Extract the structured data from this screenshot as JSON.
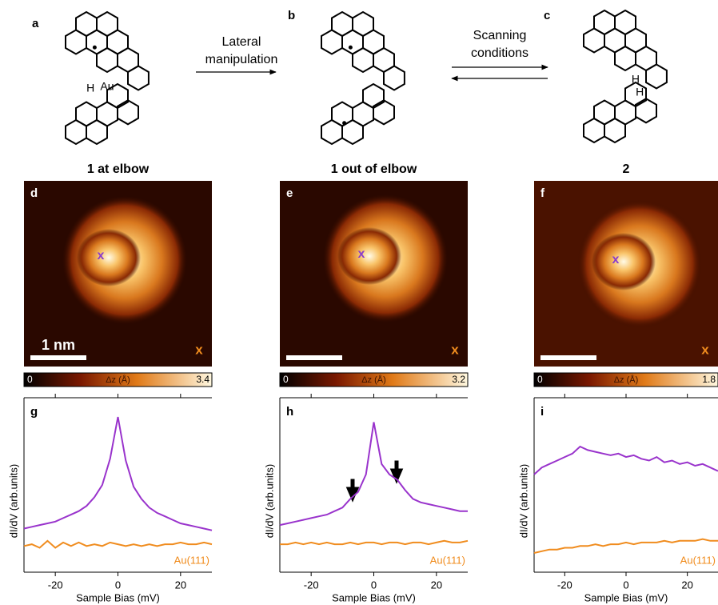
{
  "scheme": {
    "panels": [
      {
        "label": "a",
        "atoms": [
          "H",
          "Au"
        ]
      },
      {
        "label": "b"
      },
      {
        "label": "c",
        "atoms": [
          "H",
          "H"
        ]
      }
    ],
    "arrows": [
      {
        "text": [
          "Lateral",
          "manipulation"
        ]
      },
      {
        "text": [
          "Scanning",
          "conditions"
        ]
      }
    ]
  },
  "images": [
    {
      "label": "d",
      "title": "1 at elbow",
      "probe": "x",
      "reference": "x",
      "scale_bar": "1 nm",
      "colorbar": {
        "min": 0,
        "label": "Δz (Å)",
        "max": 3.4
      }
    },
    {
      "label": "e",
      "title": "1 out of elbow",
      "probe": "x",
      "reference": "x",
      "colorbar": {
        "min": 0,
        "label": "Δz (Å)",
        "max": 3.2
      }
    },
    {
      "label": "f",
      "title": "2",
      "probe": "x",
      "reference": "x",
      "colorbar": {
        "min": 0,
        "label": "Δz (Å)",
        "max": 1.8
      }
    }
  ],
  "chart_data": [
    {
      "type": "line",
      "label": "g",
      "xlabel": "Sample Bias (mV)",
      "ylabel": "dI/dV (arb.units)",
      "x": [
        -30,
        -27.5,
        -25,
        -22.5,
        -20,
        -17.5,
        -15,
        -12.5,
        -10,
        -7.5,
        -5,
        -2.5,
        0,
        2.5,
        5,
        7.5,
        10,
        12.5,
        15,
        17.5,
        20,
        22.5,
        25,
        27.5,
        30
      ],
      "xlim": [
        -30,
        30
      ],
      "xticks": [
        -20,
        0,
        20
      ],
      "ylim": [
        0,
        1
      ],
      "series": [
        {
          "color": "#9933cc",
          "values": [
            0.25,
            0.26,
            0.27,
            0.28,
            0.29,
            0.31,
            0.33,
            0.35,
            0.38,
            0.43,
            0.5,
            0.65,
            0.89,
            0.64,
            0.49,
            0.42,
            0.37,
            0.34,
            0.32,
            0.3,
            0.28,
            0.27,
            0.26,
            0.25,
            0.24
          ]
        },
        {
          "name": "Au(111)",
          "color": "#f08c1e",
          "values": [
            0.15,
            0.16,
            0.14,
            0.18,
            0.14,
            0.17,
            0.15,
            0.17,
            0.15,
            0.16,
            0.15,
            0.17,
            0.16,
            0.15,
            0.16,
            0.15,
            0.16,
            0.15,
            0.16,
            0.16,
            0.17,
            0.16,
            0.16,
            0.17,
            0.16
          ]
        }
      ]
    },
    {
      "type": "line",
      "label": "h",
      "xlabel": "Sample Bias (mV)",
      "ylabel": "dI/dV (arb.units)",
      "x": [
        -30,
        -27.5,
        -25,
        -22.5,
        -20,
        -17.5,
        -15,
        -12.5,
        -10,
        -7.5,
        -5,
        -2.5,
        0,
        2.5,
        5,
        7.5,
        10,
        12.5,
        15,
        17.5,
        20,
        22.5,
        25,
        27.5,
        30
      ],
      "xlim": [
        -30,
        30
      ],
      "xticks": [
        -20,
        0,
        20
      ],
      "ylim": [
        0,
        1
      ],
      "series": [
        {
          "color": "#9933cc",
          "values": [
            0.27,
            0.28,
            0.29,
            0.3,
            0.31,
            0.32,
            0.33,
            0.35,
            0.37,
            0.42,
            0.46,
            0.56,
            0.86,
            0.62,
            0.56,
            0.53,
            0.47,
            0.42,
            0.4,
            0.39,
            0.38,
            0.37,
            0.36,
            0.35,
            0.35
          ]
        },
        {
          "name": "Au(111)",
          "color": "#f08c1e",
          "values": [
            0.16,
            0.16,
            0.17,
            0.16,
            0.17,
            0.16,
            0.17,
            0.16,
            0.16,
            0.17,
            0.16,
            0.17,
            0.17,
            0.16,
            0.17,
            0.17,
            0.16,
            0.17,
            0.17,
            0.16,
            0.17,
            0.18,
            0.17,
            0.17,
            0.18
          ]
        }
      ]
    },
    {
      "type": "line",
      "label": "i",
      "xlabel": "Sample Bias (mV)",
      "ylabel": "dI/dV (arb.units)",
      "x": [
        -30,
        -27.5,
        -25,
        -22.5,
        -20,
        -17.5,
        -15,
        -12.5,
        -10,
        -7.5,
        -5,
        -2.5,
        0,
        2.5,
        5,
        7.5,
        10,
        12.5,
        15,
        17.5,
        20,
        22.5,
        25,
        27.5,
        30
      ],
      "xlim": [
        -30,
        30
      ],
      "xticks": [
        -20,
        0,
        20
      ],
      "ylim": [
        0,
        1
      ],
      "series": [
        {
          "color": "#9933cc",
          "values": [
            0.56,
            0.6,
            0.62,
            0.64,
            0.66,
            0.68,
            0.72,
            0.7,
            0.69,
            0.68,
            0.67,
            0.68,
            0.66,
            0.67,
            0.65,
            0.64,
            0.66,
            0.63,
            0.64,
            0.62,
            0.63,
            0.61,
            0.62,
            0.6,
            0.58
          ]
        },
        {
          "name": "Au(111)",
          "color": "#f08c1e",
          "values": [
            0.11,
            0.12,
            0.13,
            0.13,
            0.14,
            0.14,
            0.15,
            0.15,
            0.16,
            0.15,
            0.16,
            0.16,
            0.17,
            0.16,
            0.17,
            0.17,
            0.17,
            0.18,
            0.17,
            0.18,
            0.18,
            0.18,
            0.19,
            0.18,
            0.18
          ]
        }
      ]
    }
  ]
}
